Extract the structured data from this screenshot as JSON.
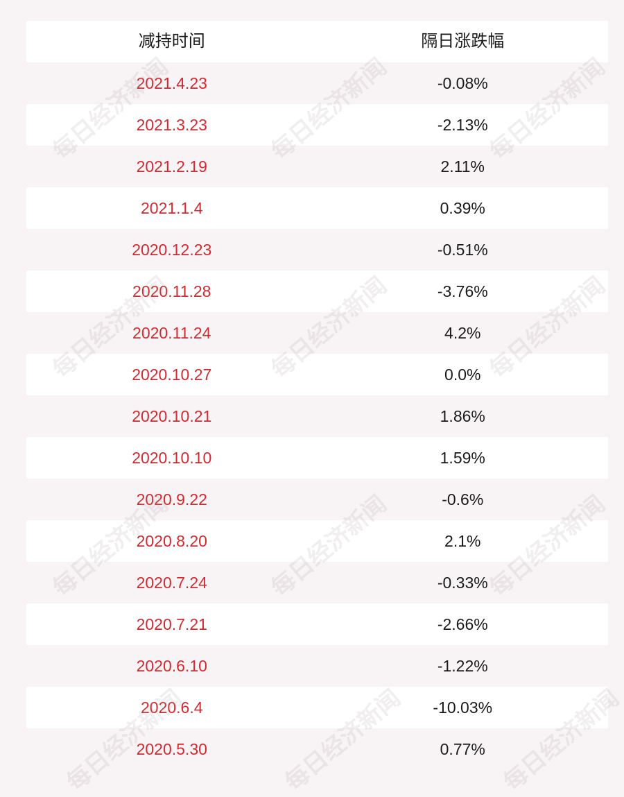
{
  "table": {
    "headers": {
      "date": "减持时间",
      "change": "隔日涨跌幅"
    },
    "rows": [
      {
        "date": "2021.4.23",
        "change": "-0.08%"
      },
      {
        "date": "2021.3.23",
        "change": "-2.13%"
      },
      {
        "date": "2021.2.19",
        "change": "2.11%"
      },
      {
        "date": "2021.1.4",
        "change": "0.39%"
      },
      {
        "date": "2020.12.23",
        "change": "-0.51%"
      },
      {
        "date": "2020.11.28",
        "change": "-3.76%"
      },
      {
        "date": "2020.11.24",
        "change": "4.2%"
      },
      {
        "date": "2020.10.27",
        "change": "0.0%"
      },
      {
        "date": "2020.10.21",
        "change": "1.86%"
      },
      {
        "date": "2020.10.10",
        "change": "1.59%"
      },
      {
        "date": "2020.9.22",
        "change": "-0.6%"
      },
      {
        "date": "2020.8.20",
        "change": "2.1%"
      },
      {
        "date": "2020.7.24",
        "change": "-0.33%"
      },
      {
        "date": "2020.7.21",
        "change": "-2.66%"
      },
      {
        "date": "2020.6.10",
        "change": "-1.22%"
      },
      {
        "date": "2020.6.4",
        "change": "-10.03%"
      },
      {
        "date": "2020.5.30",
        "change": "0.77%"
      }
    ]
  },
  "watermark": {
    "text": "每日经济新闻"
  },
  "colors": {
    "date_text": "#d42a2f",
    "value_text": "#1a1a1a",
    "row_white": "#ffffff",
    "row_tint": "#f8f4f5"
  }
}
